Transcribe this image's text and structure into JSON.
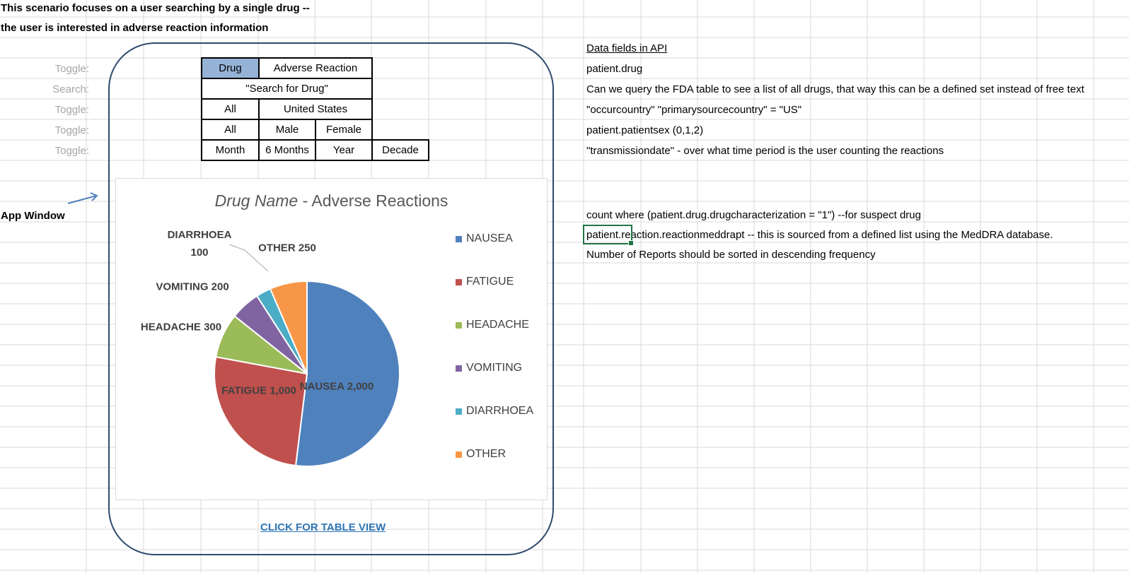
{
  "scenario": {
    "line1": "This scenario focuses on a user searching by a single drug --",
    "line2": "the user is interested in adverse reaction information"
  },
  "app_window_label": "App Window",
  "controls": {
    "drug_toggle": {
      "label": "Toggle:",
      "options": [
        "Drug",
        "Adverse Reaction"
      ],
      "selected": "Drug"
    },
    "search": {
      "label": "Search:",
      "value": "\"Search for Drug\""
    },
    "country_toggle": {
      "label": "Toggle:",
      "options": [
        "All",
        "United States"
      ]
    },
    "sex_toggle": {
      "label": "Toggle:",
      "options": [
        "All",
        "Male",
        "Female"
      ]
    },
    "period_toggle": {
      "label": "Toggle:",
      "options": [
        "Month",
        "6 Months",
        "Year",
        "Decade"
      ]
    }
  },
  "chart_data": {
    "type": "pie",
    "title_italic": "Drug Name",
    "title_rest": " - Adverse Reactions",
    "categories": [
      "NAUSEA",
      "FATIGUE",
      "HEADACHE",
      "VOMITING",
      "DIARRHOEA",
      "OTHER"
    ],
    "values": [
      2000,
      1000,
      300,
      200,
      100,
      250
    ],
    "value_labels": [
      "2,000",
      "1,000",
      "300",
      "200",
      "100",
      "250"
    ],
    "colors": [
      "#4f81bd",
      "#c0504d",
      "#9bbb59",
      "#8064a2",
      "#4bacc6",
      "#f79646"
    ],
    "legend_position": "right"
  },
  "table_view_link": "CLICK FOR TABLE VIEW",
  "notes": {
    "heading": "Data fields in API",
    "lines": [
      "patient.drug",
      "Can we query the FDA table to see a list of all drugs, that way this can be a defined set instead of free text",
      "\"occurcountry\" \"primarysourcecountry\" = \"US\"",
      "patient.patientsex (0,1,2)",
      "\"transmissiondate\" - over what time period is the user counting the reactions",
      "count where (patient.drug.drugcharacterization = \"1\") --for suspect drug",
      "patient.reaction.reactionmeddrapt -- this is sourced from a defined list using the MedDRA database.",
      "Number of Reports should be sorted in descending frequency"
    ]
  },
  "colors": {
    "frame_border": "#2f4a6e",
    "active_toggle": "#95b3d7",
    "link": "#2e75b6",
    "selection": "#217346"
  }
}
